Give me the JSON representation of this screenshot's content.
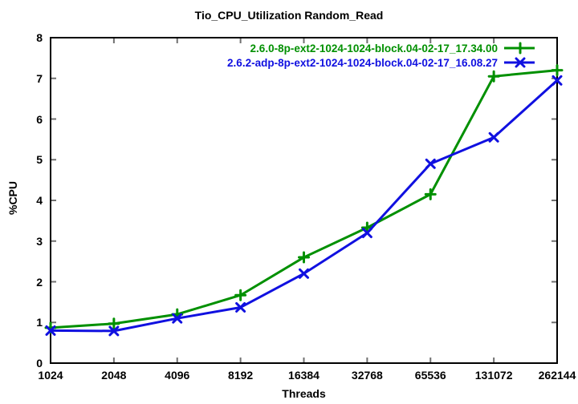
{
  "chart_data": {
    "type": "line",
    "title": "Tio_CPU_Utilization Random_Read",
    "xlabel": "Threads",
    "ylabel": "%CPU",
    "x_scale": "log2-equally-spaced-categories",
    "grid": false,
    "legend_position": "inside-top-right",
    "categories": [
      "1024",
      "2048",
      "4096",
      "8192",
      "16384",
      "32768",
      "65536",
      "131072",
      "262144"
    ],
    "ylim": [
      0,
      8
    ],
    "y_ticks": [
      "0",
      "1",
      "2",
      "3",
      "4",
      "5",
      "6",
      "7",
      "8"
    ],
    "series": [
      {
        "name": "2.6.0-8p-ext2-1024-1024-block.04-02-17_17.34.00",
        "color": "#009000",
        "marker": "plus",
        "values": [
          0.87,
          0.97,
          1.2,
          1.67,
          2.6,
          3.33,
          4.15,
          7.05,
          7.2
        ]
      },
      {
        "name": "2.6.2-adp-8p-ext2-1024-1024-block.04-02-17_16.08.27",
        "color": "#1010E0",
        "marker": "cross",
        "values": [
          0.8,
          0.79,
          1.1,
          1.37,
          2.2,
          3.2,
          4.9,
          5.55,
          6.95
        ]
      }
    ]
  },
  "colors": {
    "background": "#FFFFFF",
    "border": "#000000",
    "tick": "#707070",
    "text": "#000000"
  }
}
